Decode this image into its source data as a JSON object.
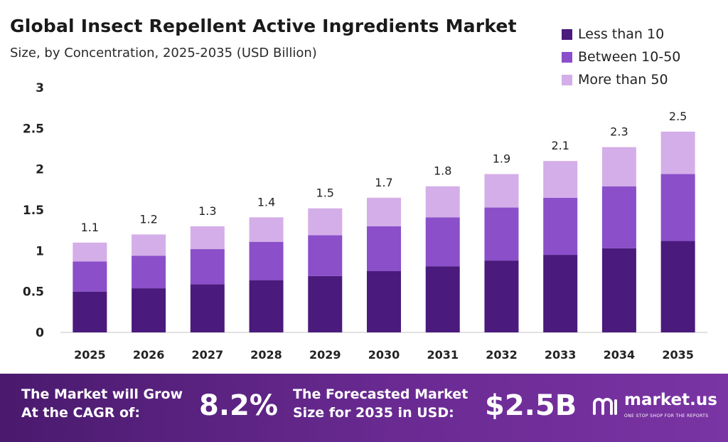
{
  "header": {
    "title": "Global Insect Repellent Active Ingredients Market",
    "subtitle": "Size, by Concentration, 2025-2035 (USD Billion)"
  },
  "colors": {
    "less_than_10": "#4a1a7c",
    "between_10_50": "#8a4fc9",
    "more_than_50": "#d4aee8",
    "footer_start": "#4a1a6e",
    "footer_end": "#7a34a4"
  },
  "chart_data": {
    "type": "bar",
    "stacked": true,
    "categories": [
      "2025",
      "2026",
      "2027",
      "2028",
      "2029",
      "2030",
      "2031",
      "2032",
      "2033",
      "2034",
      "2035"
    ],
    "series": [
      {
        "name": "Less than 10",
        "values": [
          0.5,
          0.54,
          0.59,
          0.64,
          0.69,
          0.75,
          0.81,
          0.88,
          0.95,
          1.03,
          1.12
        ]
      },
      {
        "name": "Between 10-50",
        "values": [
          0.37,
          0.4,
          0.43,
          0.47,
          0.5,
          0.55,
          0.6,
          0.65,
          0.7,
          0.76,
          0.82
        ]
      },
      {
        "name": "More than 50",
        "values": [
          0.23,
          0.26,
          0.28,
          0.3,
          0.33,
          0.35,
          0.38,
          0.41,
          0.45,
          0.48,
          0.52
        ]
      }
    ],
    "totals": [
      "1.1",
      "1.2",
      "1.3",
      "1.4",
      "1.5",
      "1.7",
      "1.8",
      "1.9",
      "2.1",
      "2.3",
      "2.5"
    ],
    "yticks": [
      "0",
      "0.5",
      "1",
      "1.5",
      "2",
      "2.5",
      "3"
    ],
    "ylim": [
      0,
      3
    ],
    "grid": false,
    "legend_position": "top-right"
  },
  "footer": {
    "cagr_label_line1": "The Market will Grow",
    "cagr_label_line2": "At the CAGR of:",
    "cagr_value": "8.2%",
    "forecast_label_line1": "The Forecasted Market",
    "forecast_label_line2": "Size for 2035 in USD:",
    "forecast_value": "$2.5B",
    "brand_name": "market.us",
    "brand_tagline": "ONE STOP SHOP FOR THE REPORTS"
  }
}
